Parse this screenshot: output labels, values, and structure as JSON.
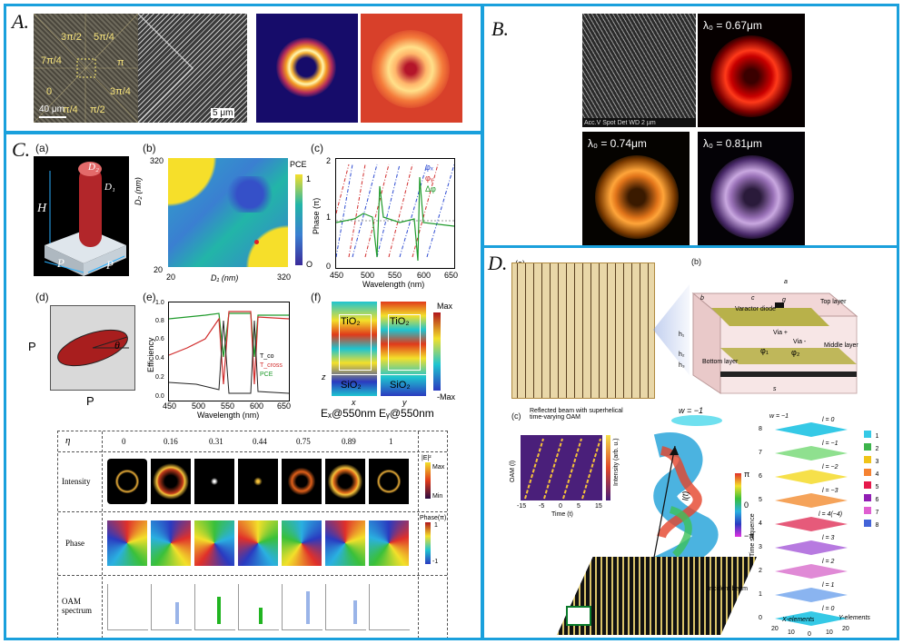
{
  "panels": {
    "a": {
      "label": "A.",
      "phase_labels": [
        "3π/2",
        "5π/4",
        "7π/4",
        "π",
        "0",
        "3π/4",
        "π/4",
        "π/2"
      ],
      "scale_left": "40 μm",
      "scale_right": "5 μm"
    },
    "b": {
      "label": "B.",
      "sem_caption": "Acc.V Spot Det WD   2 µm",
      "wavelengths": [
        "λ₀ = 0.67μm",
        "λ₀ = 0.74μm",
        "λ₀ = 0.81μm"
      ]
    },
    "c": {
      "label": "C.",
      "sub_a": "(a)",
      "sub_b": "(b)",
      "sub_c": "(c)",
      "sub_d": "(d)",
      "sub_e": "(e)",
      "sub_f": "(f)",
      "pillar_labels": {
        "d2": "D₂",
        "d1": "D₁",
        "h": "H",
        "p1": "P",
        "p2": "P"
      },
      "map": {
        "y_top": "320",
        "y_bottom": "20",
        "x_left": "20",
        "x_right": "320",
        "xlabel": "D₁ (nm)",
        "ylabel": "D₂ (nm)",
        "cbar_title": "PCE",
        "cbar_max": "1",
        "cbar_min": "O"
      },
      "phase_plot": {
        "ylabel": "Phase (π)",
        "xlabel": "Wavelength (nm)",
        "yticks": [
          "2",
          "1",
          "0"
        ],
        "xticks": [
          "450",
          "500",
          "550",
          "600",
          "650"
        ],
        "legend": [
          "φₓ",
          "φᵧ",
          "Δφ"
        ]
      },
      "ellipse": {
        "theta": "θ",
        "p_v": "P",
        "p_h": "P"
      },
      "eff_plot": {
        "ylabel": "Efficiency",
        "xlabel": "Wavelength (nm)",
        "yticks": [
          "1.0",
          "0.8",
          "0.6",
          "0.4",
          "0.2",
          "0.0"
        ],
        "xticks": [
          "450",
          "500",
          "550",
          "600",
          "650"
        ],
        "legend": [
          "T_co",
          "T_cross",
          "PCE"
        ]
      },
      "field": {
        "cbar_max": "Max",
        "cbar_min": "-Max",
        "tio2": "TiO₂",
        "sio2": "SiO₂",
        "cap_x": "Eₓ@550nm",
        "cap_y": "Eᵧ@550nm",
        "z": "z",
        "x": "x",
        "y": "y"
      },
      "table": {
        "eta_label": "η",
        "eta_values": [
          "0",
          "0.16",
          "0.31",
          "0.44",
          "0.75",
          "0.89",
          "1"
        ],
        "rows": [
          "Intensity",
          "Phase",
          "OAM spectrum"
        ],
        "intensity_cbar": {
          "title": "|E|²",
          "max": "Max",
          "min": "Min"
        },
        "phase_cbar": {
          "title": "Phase(π)",
          "max": "1",
          "min": "-1"
        }
      }
    },
    "d": {
      "label": "D.",
      "sub_a": "(a)",
      "sub_b": "(b)",
      "sub_c": "(c)",
      "cell": {
        "a": "a",
        "b": "b",
        "c": "c",
        "g": "g",
        "diode": "Varactor diode",
        "top": "Top layer",
        "middle": "Middle layer",
        "bottom": "Bottom layer",
        "via_plus": "Via +",
        "via_minus": "Via -",
        "phi1": "φ₁",
        "phi2": "φ₂",
        "h1": "h₁",
        "h2": "h₂",
        "h3": "h₃",
        "s": "s",
        "x": "x",
        "y": "y",
        "z": "z"
      },
      "oam_title": "Reflected beam with superhelical time-varying OAM",
      "oam_ylabel": "OAM (l)",
      "oam_xlabel": "Time (t)",
      "oam_cbar": "Intensity (arb. u.)",
      "oam_xticks": [
        "-15",
        "-5",
        "0",
        "5",
        "15"
      ],
      "helix_w_top": "w = −1",
      "helix_lt": "l(t)",
      "helix_pi": "π",
      "helix_zero": "0",
      "helix_negpi": "−π",
      "incident": "Incident beam",
      "stack_w": "w = −1",
      "stack_l_labels": [
        "l = 0",
        "l = −1",
        "l = −2",
        "l = −3",
        "l = 4(−4)",
        "l = 3",
        "l = 2",
        "l = 1",
        "l = 0"
      ],
      "stack_legend": [
        "1",
        "2",
        "3",
        "4",
        "5",
        "6",
        "7",
        "8"
      ],
      "stack_legend_colors": [
        "#35c9e6",
        "#3cb44b",
        "#f0c419",
        "#f58231",
        "#e6194b",
        "#911eb4",
        "#e05fd1",
        "#4363d8"
      ],
      "stack_ylabel": "Time sequence",
      "stack_yticks": [
        "8",
        "7",
        "6",
        "5",
        "4",
        "3",
        "2",
        "1",
        "0"
      ],
      "stack_xlabel": "X-elements",
      "stack_xlabel2": "Y-elements",
      "stack_xticks": [
        "20",
        "10",
        "0",
        "10",
        "20"
      ]
    }
  }
}
